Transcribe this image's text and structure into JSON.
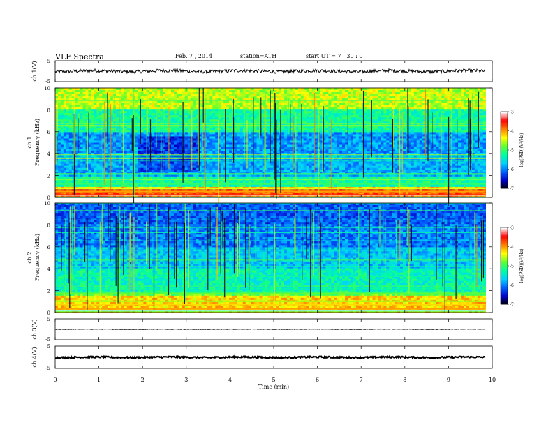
{
  "header": {
    "title": "VLF Spectra",
    "date": "Feb. 7  , 2014",
    "station": "station=ATH",
    "start": "start  UT  =   7  : 30 : 0"
  },
  "chart_data": [
    {
      "type": "line",
      "ylabel": "ch.1(V)",
      "yticks": [
        "5",
        "-5"
      ],
      "ylim": [
        -5,
        5
      ],
      "baseline": 0,
      "xlim": [
        0,
        10
      ],
      "trace_end": 9.85
    },
    {
      "type": "heatmap",
      "ylabel": "Frequency  (kHz)",
      "channel_label": "ch.1",
      "ylim": [
        0,
        10
      ],
      "yticks": [
        "0",
        "2",
        "4",
        "6",
        "8",
        "10"
      ],
      "colorbar": {
        "label": "log(PSD)(V²/Hz)",
        "ticks": [
          "-3",
          "-4",
          "-5",
          "-6",
          "-7"
        ],
        "range": [
          -7,
          -3
        ]
      }
    },
    {
      "type": "heatmap",
      "ylabel": "Frequency  (kHz)",
      "channel_label": "ch.2",
      "ylim": [
        0,
        10
      ],
      "yticks": [
        "0",
        "2",
        "4",
        "6",
        "8",
        "10"
      ],
      "colorbar": {
        "label": "log(PSD)(V²/Hz)",
        "ticks": [
          "-3",
          "-4",
          "-5",
          "-6",
          "-7"
        ],
        "range": [
          -7,
          -3
        ]
      }
    },
    {
      "type": "line",
      "ylabel": "ch.3(V)",
      "yticks": [
        "5",
        "-5"
      ],
      "ylim": [
        -5,
        5
      ],
      "baseline": 0,
      "xlim": [
        0,
        10
      ],
      "trace_end": 9.85
    },
    {
      "type": "line",
      "ylabel": "ch.4(V)",
      "yticks": [
        "5",
        "-5"
      ],
      "ylim": [
        -5,
        5
      ],
      "baseline": 0,
      "xlim": [
        0,
        10
      ],
      "trace_end": 9.85
    }
  ],
  "xaxis": {
    "label": "Time  (min)",
    "ticks": [
      "0",
      "1",
      "2",
      "3",
      "4",
      "5",
      "6",
      "7",
      "8",
      "9",
      "10"
    ],
    "range": [
      0,
      10
    ]
  },
  "colors": {
    "trace": "#000000",
    "colormap": [
      "#000000",
      "#0000c8",
      "#0060ff",
      "#00d0ff",
      "#00ffa0",
      "#60ff30",
      "#ffff00",
      "#ff8000",
      "#ff0000",
      "#ffffff"
    ]
  }
}
